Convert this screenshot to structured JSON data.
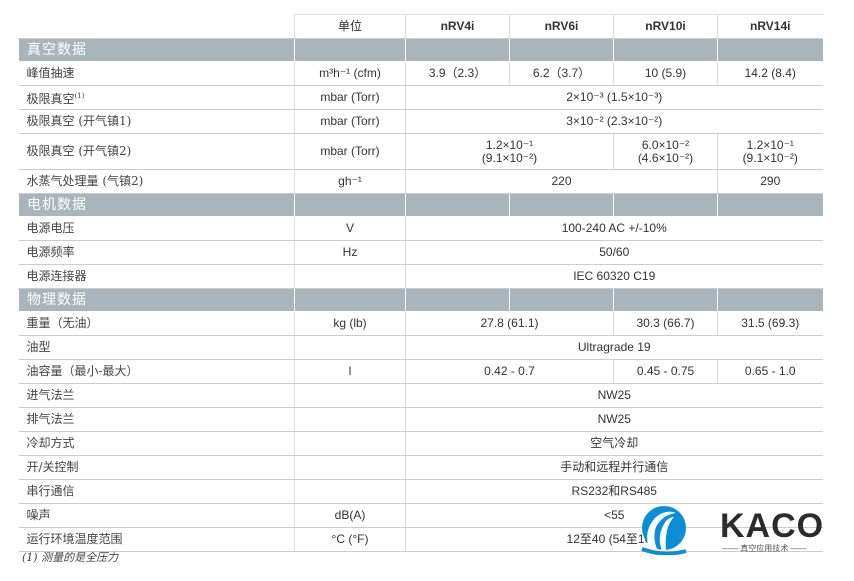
{
  "header": {
    "unit": "单位",
    "models": [
      "nRV4i",
      "nRV6i",
      "nRV10i",
      "nRV14i"
    ]
  },
  "sections": {
    "vacuum": {
      "title": "真空数据",
      "rows": [
        {
          "label": "峰值抽速",
          "unit": "m³h⁻¹ (cfm)",
          "values": [
            "3.9（2.3）",
            "6.2（3.7）",
            "10 (5.9)",
            "14.2 (8.4)"
          ]
        },
        {
          "label": "极限真空",
          "label_sup": "(1)",
          "unit": "mbar (Torr)",
          "value": "2×10⁻³ (1.5×10⁻³)"
        },
        {
          "label": "极限真空 (开气镇1)",
          "unit": "mbar (Torr)",
          "value": "3×10⁻² (2.3×10⁻²)"
        },
        {
          "label": "极限真空 (开气镇2)",
          "unit": "mbar (Torr)",
          "values": [
            "1.2×10⁻¹",
            "(9.1×10⁻²)",
            "6.0×10⁻²",
            "(4.6×10⁻²)",
            "1.2×10⁻¹",
            "(9.1×10⁻²)"
          ]
        },
        {
          "label": "水蒸气处理量 (气镇2)",
          "unit": "gh⁻¹",
          "values": [
            "220",
            "290"
          ]
        }
      ]
    },
    "motor": {
      "title": "电机数据",
      "rows": [
        {
          "label": "电源电压",
          "unit": "V",
          "value": "100-240 AC +/-10%"
        },
        {
          "label": "电源频率",
          "unit": "Hz",
          "value": "50/60"
        },
        {
          "label": "电源连接器",
          "unit": "",
          "value": "IEC 60320 C19"
        }
      ]
    },
    "physical": {
      "title": "物理数据",
      "rows": [
        {
          "label": "重量（无油）",
          "unit": "kg (lb)",
          "values": [
            "27.8 (61.1)",
            "30.3 (66.7)",
            "31.5 (69.3)"
          ]
        },
        {
          "label": "油型",
          "unit": "",
          "value": "Ultragrade 19"
        },
        {
          "label": "油容量（最小-最大）",
          "unit": "l",
          "values": [
            "0.42 - 0.7",
            "0.45 - 0.75",
            "0.65 - 1.0"
          ]
        },
        {
          "label": "进气法兰",
          "unit": "",
          "value": "NW25"
        },
        {
          "label": "排气法兰",
          "unit": "",
          "value": "NW25"
        },
        {
          "label": "冷却方式",
          "unit": "",
          "value": "空气冷却"
        },
        {
          "label": "开/关控制",
          "unit": "",
          "value": "手动和远程并行通信"
        },
        {
          "label": "串行通信",
          "unit": "",
          "value": "RS232和RS485"
        },
        {
          "label": "噪声",
          "unit": "dB(A)",
          "value": "<55"
        },
        {
          "label": "运行环境温度范围",
          "unit": "°C (°F)",
          "value": "12至40 (54至104)"
        }
      ]
    }
  },
  "footnote": "(1) 测量的是全压力",
  "logo": {
    "name": "KACO",
    "tagline": "—— 真空应用技术 ——",
    "color": "#0a8fd6"
  },
  "colors": {
    "section_bg": "#a9b4bb"
  }
}
